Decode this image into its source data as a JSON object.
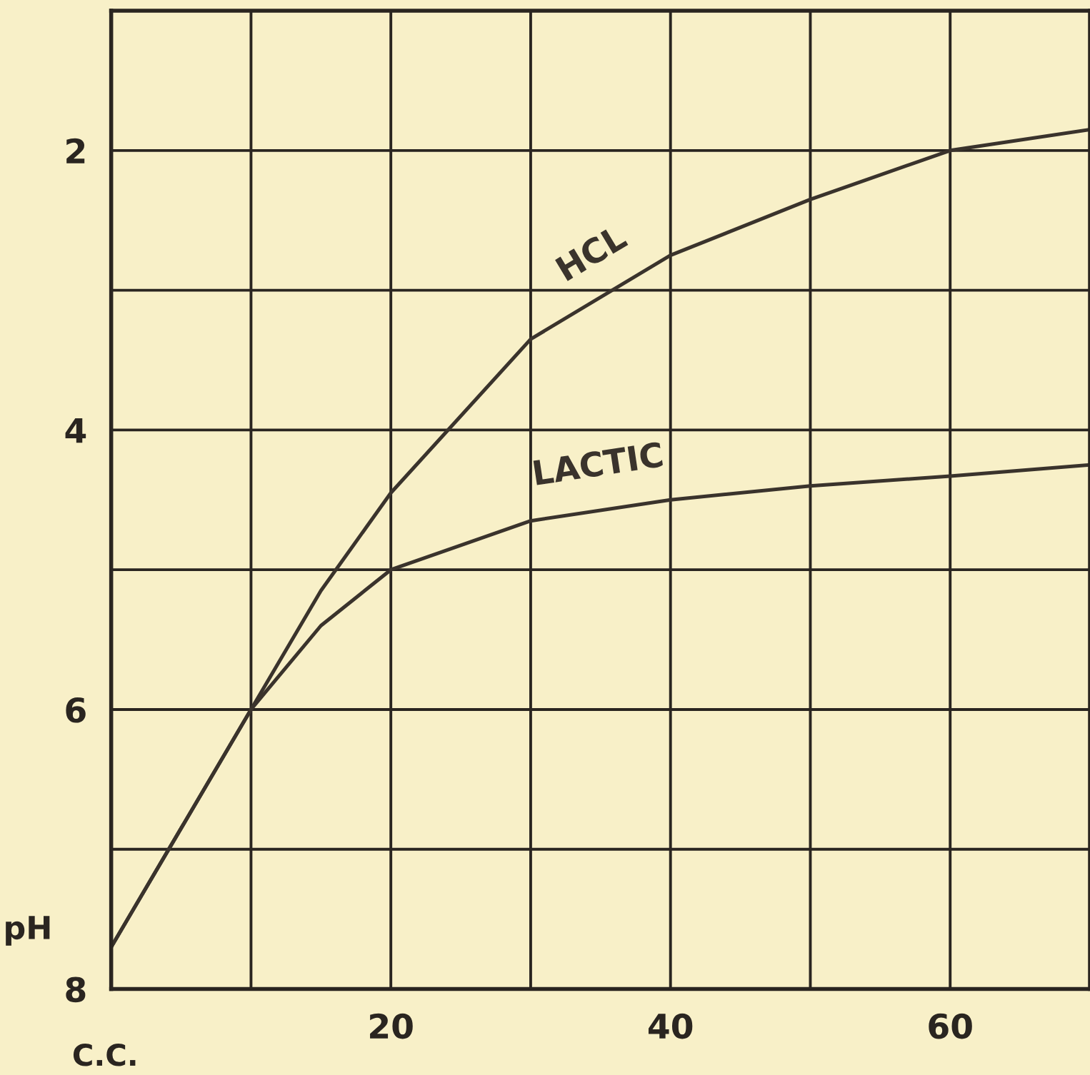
{
  "chart_data": {
    "type": "line",
    "xlabel": "C.C.",
    "ylabel": "pH",
    "x": [
      0,
      5,
      10,
      15,
      20,
      30,
      40,
      50,
      60,
      70
    ],
    "series": [
      {
        "name": "HCL",
        "color": "#3a332c",
        "values": [
          7.7,
          6.85,
          6.0,
          5.15,
          4.45,
          3.35,
          2.75,
          2.35,
          2.0,
          1.85
        ]
      },
      {
        "name": "LACTIC",
        "color": "#3a332c",
        "values": [
          7.7,
          6.85,
          6.0,
          5.4,
          5.0,
          4.65,
          4.5,
          4.4,
          4.33,
          4.25
        ]
      }
    ],
    "xlim": [
      0,
      70
    ],
    "ylim": [
      8,
      1
    ],
    "xticks": [
      {
        "value": 10,
        "label": null
      },
      20,
      {
        "value": 30,
        "label": null
      },
      40,
      {
        "value": 50,
        "label": null
      },
      60,
      {
        "value": 70,
        "label": null
      }
    ],
    "yticks": [
      {
        "value": 1,
        "label": null
      },
      2,
      {
        "value": 3,
        "label": null
      },
      4,
      {
        "value": 5,
        "label": null
      },
      6,
      {
        "value": 7,
        "label": null
      },
      8
    ],
    "grid": true,
    "legend": false,
    "marker": "none",
    "line_style": "solid"
  }
}
